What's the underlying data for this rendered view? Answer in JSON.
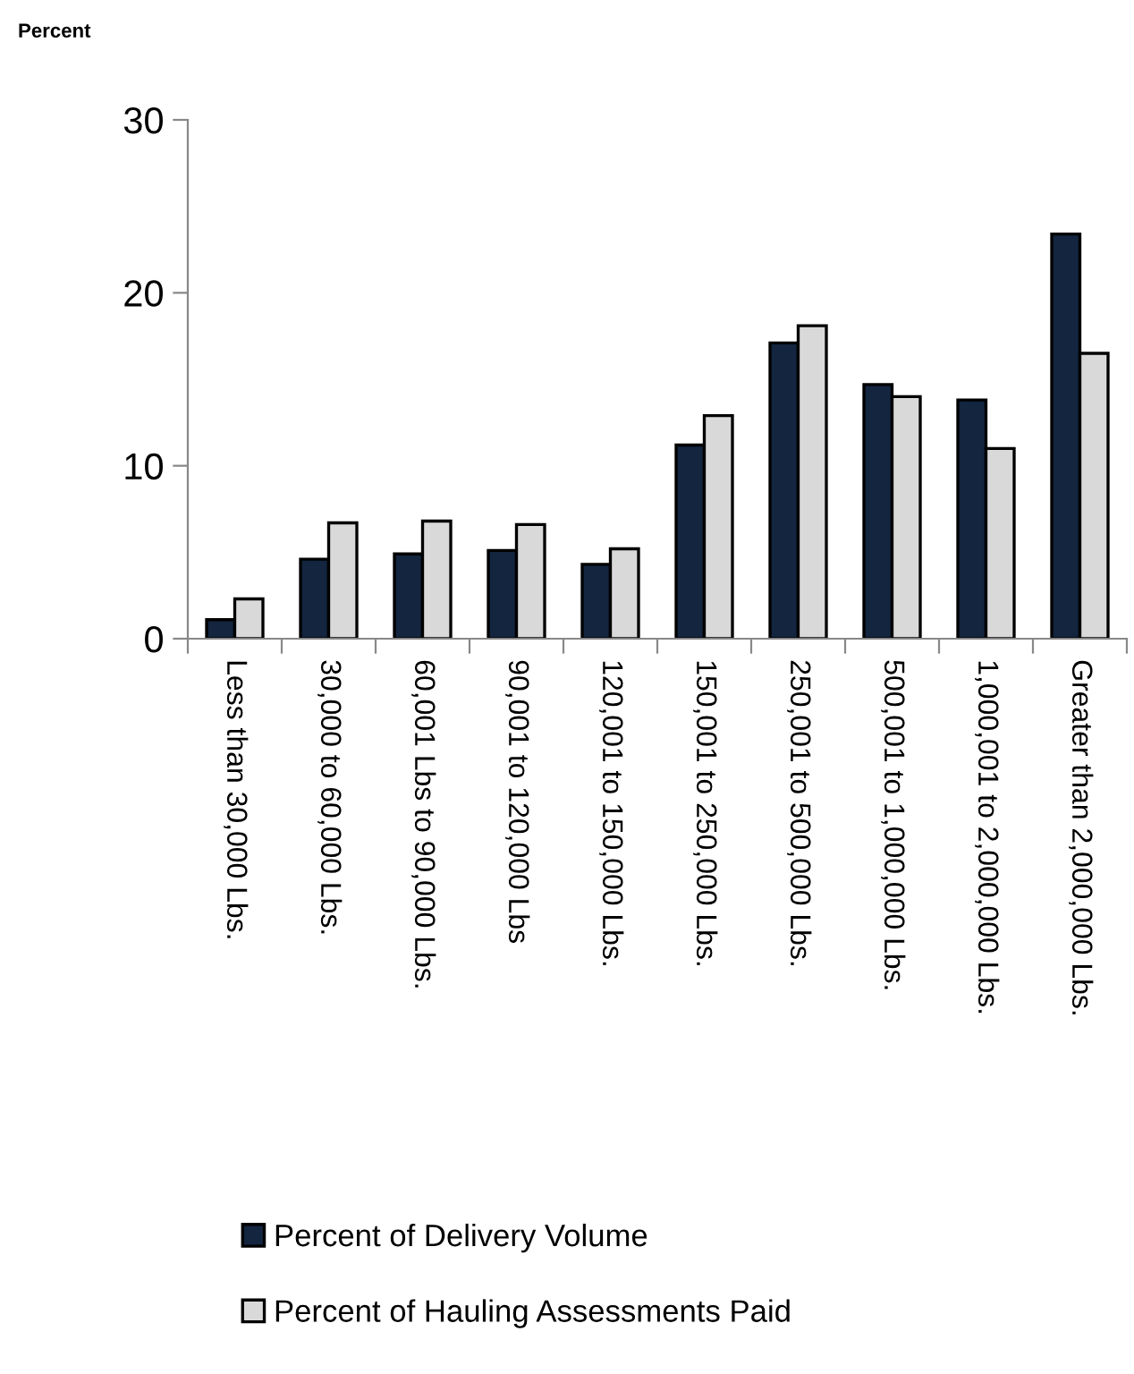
{
  "chart_data": {
    "type": "bar",
    "ylabel": "Percent",
    "categories": [
      "Less than 30,000 Lbs.",
      "30,000 to 60,000 Lbs.",
      "60,001 Lbs to 90,000 Lbs.",
      "90,001 to 120,000 Lbs",
      "120,001 to 150,000 Lbs.",
      "150,001 to 250,000 Lbs.",
      "250,001 to 500,000 Lbs.",
      "500,001 to 1,000,000 Lbs.",
      "1,000,001 to 2,000,000 Lbs.",
      "Greater than 2,000,000 Lbs."
    ],
    "series": [
      {
        "name": "Percent of Delivery Volume",
        "color": "#13253f",
        "values": [
          1.1,
          4.6,
          4.9,
          5.1,
          4.3,
          11.2,
          17.1,
          14.7,
          13.8,
          23.4
        ]
      },
      {
        "name": "Percent of Hauling Assessments Paid",
        "color": "#d9d9d9",
        "values": [
          2.3,
          6.7,
          6.8,
          6.6,
          5.2,
          12.9,
          18.1,
          14.0,
          11.0,
          16.5
        ]
      }
    ],
    "ylim": [
      0,
      30
    ],
    "yticks": [
      0,
      10,
      20,
      30
    ],
    "grid": false,
    "legend": "bottom"
  }
}
